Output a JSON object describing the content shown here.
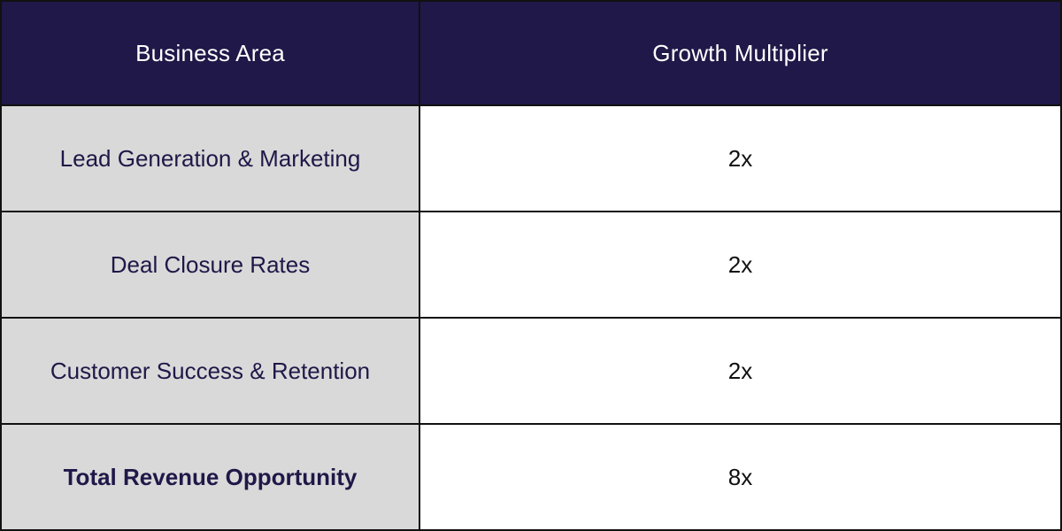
{
  "table": {
    "headers": {
      "area": "Business Area",
      "multiplier": "Growth Multiplier"
    },
    "rows": [
      {
        "area": "Lead Generation & Marketing",
        "multiplier": "2x"
      },
      {
        "area": "Deal Closure Rates",
        "multiplier": "2x"
      },
      {
        "area": "Customer Success & Retention",
        "multiplier": "2x"
      },
      {
        "area": "Total Revenue Opportunity",
        "multiplier": "8x",
        "bold": true
      }
    ],
    "colors": {
      "header_bg": "#1f1848",
      "header_text": "#ffffff",
      "area_bg": "#d9d9d9",
      "area_text": "#1f1848",
      "border": "#111111"
    }
  }
}
